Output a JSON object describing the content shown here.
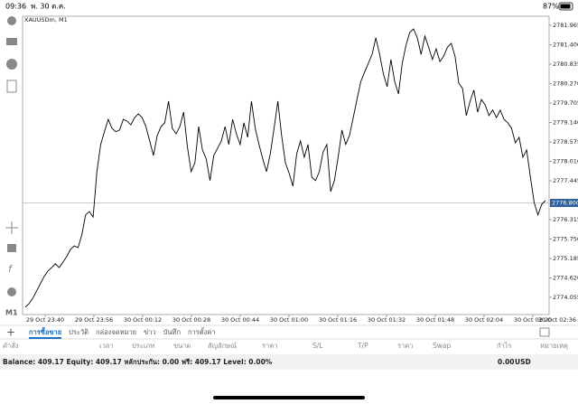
{
  "status_bar": {
    "time": "09:36",
    "date": "พ. 30 ต.ค.",
    "battery": "87%"
  },
  "toolbar": {
    "timeframe": "M1"
  },
  "chart": {
    "type": "line",
    "symbol": "XAUUSDm, M1",
    "color": "#000000",
    "categories": [
      "29 Oct 23:40",
      "29 Oct 23:56",
      "30 Oct 00:12",
      "30 Oct 00:28",
      "30 Oct 00:44",
      "30 Oct 01:00",
      "30 Oct 01:16",
      "30 Oct 01:32",
      "30 Oct 01:48",
      "30 Oct 02:04",
      "30 Oct 02:20",
      "30 Oct 02:36"
    ],
    "ylim": [
      2773.555,
      2782.228
    ],
    "yticks": [
      2781.965,
      {
        "value": 2781.4,
        "label": "2781.400"
      },
      2780.835,
      {
        "value": 2780.27,
        "label": "2780.270"
      },
      2779.705,
      {
        "value": 2779.14,
        "label": "2779.140"
      },
      2778.575,
      {
        "value": 2778.01,
        "label": "2778.010"
      },
      2777.445,
      2776.315,
      {
        "value": 2775.75,
        "label": "2775.750"
      },
      2775.185,
      {
        "value": 2774.62,
        "label": "2774.620"
      },
      2774.055
    ],
    "current_price": {
      "value": 2776.8,
      "label": "2776.800"
    },
    "values": [
      2773.77,
      2773.87,
      2774.03,
      2774.24,
      2774.45,
      2774.66,
      2774.82,
      2774.92,
      2775.03,
      2774.92,
      2775.08,
      2775.24,
      2775.45,
      2775.55,
      2775.5,
      2775.87,
      2776.45,
      2776.55,
      2776.39,
      2777.71,
      2778.5,
      2778.87,
      2779.23,
      2778.97,
      2778.87,
      2778.92,
      2779.23,
      2779.18,
      2779.07,
      2779.28,
      2779.39,
      2779.28,
      2779.02,
      2778.6,
      2778.18,
      2778.76,
      2779.02,
      2779.13,
      2779.76,
      2778.97,
      2778.81,
      2779.02,
      2779.44,
      2778.44,
      2777.71,
      2777.97,
      2779.02,
      2778.34,
      2778.08,
      2777.45,
      2778.18,
      2778.39,
      2778.6,
      2779.02,
      2778.5,
      2779.23,
      2778.81,
      2778.5,
      2779.13,
      2778.71,
      2779.76,
      2778.97,
      2778.5,
      2778.08,
      2777.71,
      2778.23,
      2778.97,
      2779.76,
      2778.76,
      2777.97,
      2777.66,
      2777.29,
      2778.23,
      2778.6,
      2778.13,
      2778.5,
      2777.55,
      2777.45,
      2777.71,
      2778.28,
      2778.5,
      2777.13,
      2777.45,
      2778.13,
      2778.92,
      2778.5,
      2778.76,
      2779.28,
      2779.81,
      2780.33,
      2780.6,
      2780.86,
      2781.12,
      2781.6,
      2781.12,
      2780.55,
      2780.18,
      2780.97,
      2780.33,
      2779.97,
      2780.86,
      2781.39,
      2781.76,
      2781.86,
      2781.6,
      2781.12,
      2781.65,
      2781.33,
      2780.97,
      2781.28,
      2780.91,
      2781.07,
      2781.33,
      2781.44,
      2781.07,
      2780.28,
      2780.13,
      2779.34,
      2779.76,
      2780.08,
      2779.44,
      2779.81,
      2779.65,
      2779.34,
      2779.5,
      2779.28,
      2779.5,
      2779.23,
      2779.13,
      2778.97,
      2778.55,
      2778.71,
      2778.13,
      2778.34,
      2777.55,
      2776.81,
      2776.45,
      2776.76,
      2776.87
    ]
  },
  "tabs": [
    "การซื้อขาย",
    "ประวัติ",
    "กล่องจดหมาย",
    "ข่าว",
    "บันทึก",
    "การตั้งค่า"
  ],
  "table": {
    "headers": [
      "คำสั่ง",
      "เวลา",
      "ประเภท",
      "ขนาด",
      "สัญลักษณ์",
      "ราคา",
      "S/L",
      "T/P",
      "ราคา",
      "Swap",
      "กำไร",
      "หมายเหตุ"
    ]
  },
  "balance": {
    "summary": "Balance: 409.17 Equity: 409.17 หลักประกัน: 0.00 ฟรี: 409.17 Level: 0.00%",
    "profit": "0.00",
    "currency": "USD"
  }
}
